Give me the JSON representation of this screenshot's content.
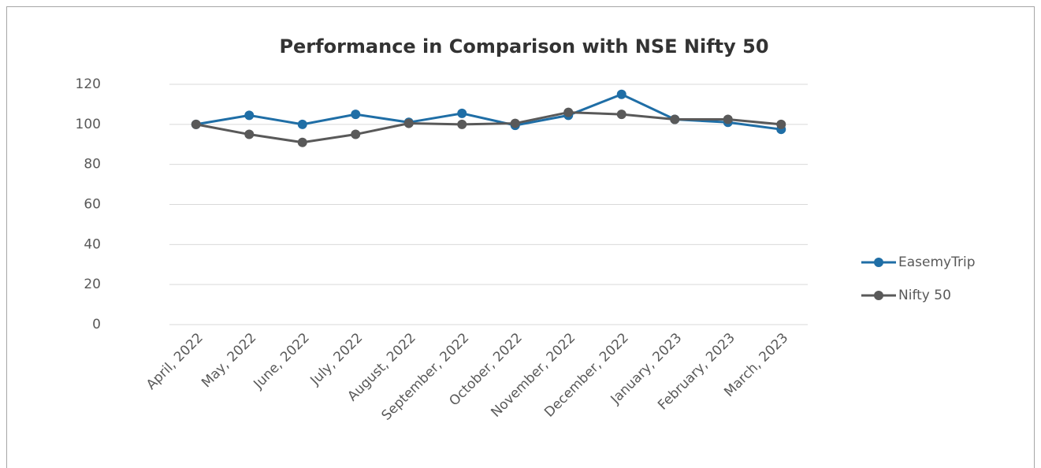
{
  "chart_data": {
    "type": "line",
    "title": "Performance in Comparison with NSE Nifty 50",
    "categories": [
      "April, 2022",
      "May, 2022",
      "June, 2022",
      "July, 2022",
      "August, 2022",
      "September, 2022",
      "October, 2022",
      "November, 2022",
      "December, 2022",
      "January, 2023",
      "February, 2023",
      "March, 2023"
    ],
    "series": [
      {
        "name": "EasemyTrip",
        "color": "#1f6ea6",
        "values": [
          100,
          104.5,
          100,
          105,
          101,
          105.5,
          99.5,
          104.5,
          115,
          102.5,
          101,
          97.5
        ]
      },
      {
        "name": "Nifty 50",
        "color": "#595959",
        "values": [
          100,
          95,
          91,
          95,
          100.5,
          100,
          100.5,
          106,
          105,
          102.5,
          102.5,
          100
        ]
      }
    ],
    "ylim": [
      0,
      120
    ],
    "yticks": [
      0,
      20,
      40,
      60,
      80,
      100,
      120
    ],
    "grid": true,
    "legend": "right"
  }
}
